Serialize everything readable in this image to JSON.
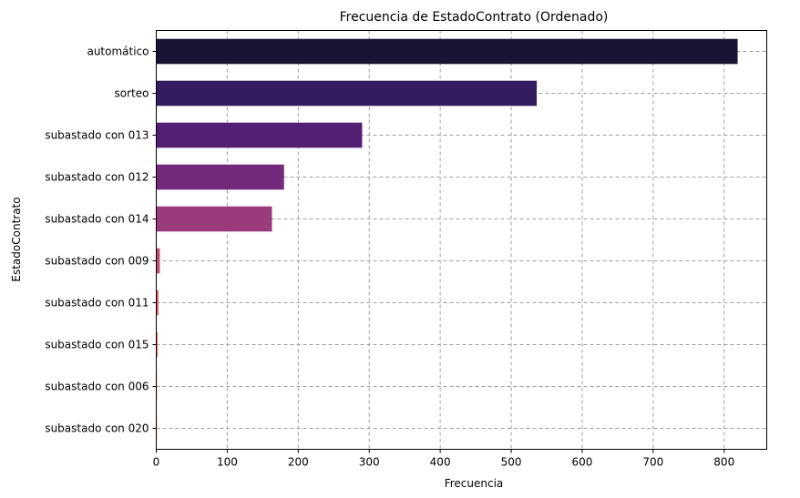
{
  "chart_data": {
    "type": "bar",
    "orientation": "horizontal",
    "title": "Frecuencia de EstadoContrato (Ordenado)",
    "xlabel": "Frecuencia",
    "ylabel": "EstadoContrato",
    "categories": [
      "automático",
      "sorteo",
      "subastado con 013",
      "subastado con 012",
      "subastado con 014",
      "subastado con 009",
      "subastado con 011",
      "subastado con 015",
      "subastado con 006",
      "subastado con 020"
    ],
    "values": [
      819,
      536,
      290,
      180,
      163,
      5,
      3,
      2,
      1,
      1
    ],
    "xlim": [
      0,
      860
    ],
    "xticks": [
      0,
      100,
      200,
      300,
      400,
      500,
      600,
      700,
      800
    ],
    "grid": true,
    "colors": [
      "#1a1334",
      "#331c5f",
      "#521f72",
      "#742a7b",
      "#9a3c7c",
      "#bf4b70",
      "#da5a5d",
      "#e8735a",
      "#f0956b",
      "#f5b485"
    ]
  }
}
